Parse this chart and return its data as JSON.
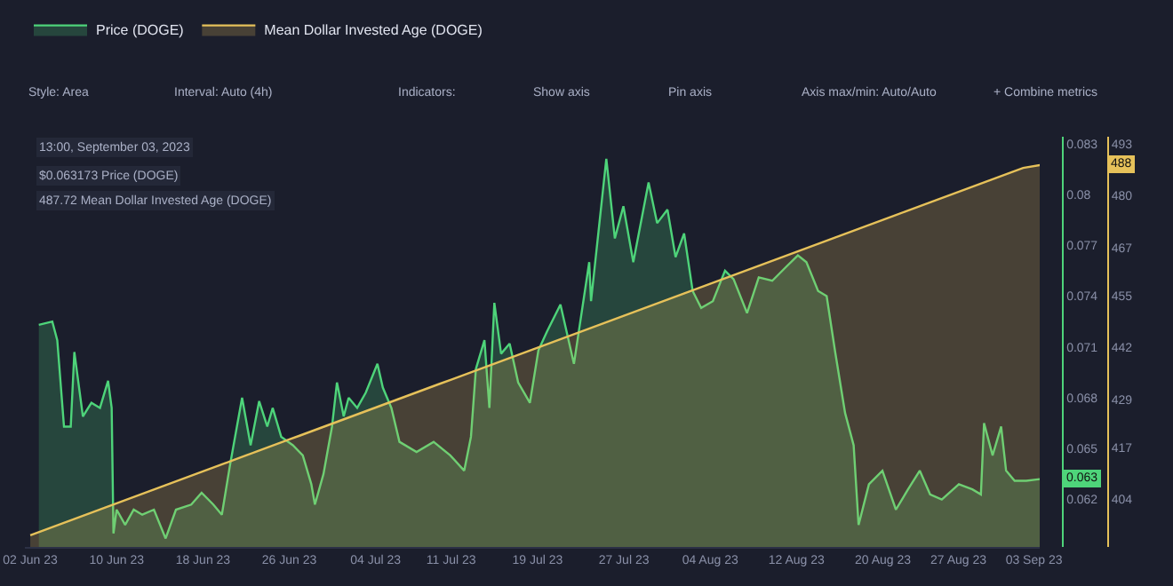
{
  "chart_data": {
    "type": "area",
    "xlim": [
      "2023-06-01T12:00",
      "2023-09-03T13:00"
    ],
    "xticks": [
      {
        "value": "2023-06-02",
        "label": "02 Jun 23"
      },
      {
        "value": "2023-06-10",
        "label": "10 Jun 23"
      },
      {
        "value": "2023-06-18",
        "label": "18 Jun 23"
      },
      {
        "value": "2023-06-26",
        "label": "26 Jun 23"
      },
      {
        "value": "2023-07-04",
        "label": "04 Jul 23"
      },
      {
        "value": "2023-07-11",
        "label": "11 Jul 23"
      },
      {
        "value": "2023-07-19",
        "label": "19 Jul 23"
      },
      {
        "value": "2023-07-27",
        "label": "27 Jul 23"
      },
      {
        "value": "2023-08-04",
        "label": "04 Aug 23"
      },
      {
        "value": "2023-08-12",
        "label": "12 Aug 23"
      },
      {
        "value": "2023-08-20",
        "label": "20 Aug 23"
      },
      {
        "value": "2023-08-27",
        "label": "27 Aug 23"
      },
      {
        "value": "2023-09-03",
        "label": "03 Sep 23"
      }
    ],
    "ylim": [
      0.0592,
      0.0834
    ],
    "yticks": [
      0.062,
      0.065,
      0.068,
      0.071,
      0.074,
      0.077,
      0.08,
      0.083
    ],
    "y2lim": [
      392.1,
      494.8
    ],
    "y2ticks": [
      404,
      417,
      429,
      442,
      455,
      467,
      480,
      493
    ],
    "legend": "top",
    "annotations": [
      "Style: Area",
      "Interval: Auto (4h)",
      "Indicators:",
      "Show axis",
      "Pin axis",
      "Axis max/min: Auto/Auto",
      "+ Combine metrics",
      "13:00, September 03, 2023",
      "$0.063173 Price (DOGE)",
      "487.72 Mean Dollar Invested Age (DOGE)",
      "0.063",
      "488"
    ],
    "series": [
      {
        "name": "Price (DOGE)",
        "color": "#4ed47a",
        "x": [
          "2023-06-02T19:00",
          "2023-06-04T01:00",
          "2023-06-04T12:00",
          "2023-06-05T03:00",
          "2023-06-05T18:00",
          "2023-06-06T02:00",
          "2023-06-06T21:00",
          "2023-06-07T16:00",
          "2023-06-08T11:00",
          "2023-06-09T05:00",
          "2023-06-09T13:00",
          "2023-06-09T17:00",
          "2023-06-10T00:00",
          "2023-06-10T19:00",
          "2023-06-11T14:00",
          "2023-06-12T09:00",
          "2023-06-13T11:00",
          "2023-06-14T13:00",
          "2023-06-15T12:00",
          "2023-06-16T22:00",
          "2023-06-17T21:00",
          "2023-06-18T23:00",
          "2023-06-19T18:00",
          "2023-06-20T12:00",
          "2023-06-21T15:00",
          "2023-06-22T10:00",
          "2023-06-23T05:00",
          "2023-06-23T23:00",
          "2023-06-24T11:00",
          "2023-06-25T06:00",
          "2023-06-26T08:00",
          "2023-06-27T06:00",
          "2023-06-28T01:00",
          "2023-06-28T09:00",
          "2023-06-29T04:00",
          "2023-06-29T23:00",
          "2023-06-30T10:00",
          "2023-07-01T01:00",
          "2023-07-01T12:00",
          "2023-07-02T07:00",
          "2023-07-03T02:00",
          "2023-07-04T04:00",
          "2023-07-04T16:00",
          "2023-07-05T11:00",
          "2023-07-06T05:00",
          "2023-07-07T19:00",
          "2023-07-09T09:00",
          "2023-07-10T22:00",
          "2023-07-12T05:00",
          "2023-07-12T20:00",
          "2023-07-13T07:00",
          "2023-07-14T02:00",
          "2023-07-14T13:00",
          "2023-07-15T00:00",
          "2023-07-15T15:00",
          "2023-07-16T10:00",
          "2023-07-17T05:00",
          "2023-07-18T07:00",
          "2023-07-19T02:00",
          "2023-07-19T21:00",
          "2023-07-21T03:00",
          "2023-07-22T09:00",
          "2023-07-23T19:00",
          "2023-07-23T23:00",
          "2023-07-25T09:00",
          "2023-07-26T04:00",
          "2023-07-26T23:00",
          "2023-07-27T21:00",
          "2023-07-29T07:00",
          "2023-07-30T02:00",
          "2023-07-31T01:00",
          "2023-07-31T19:00",
          "2023-08-01T14:00",
          "2023-08-02T09:00",
          "2023-08-03T04:00",
          "2023-08-04T06:00",
          "2023-08-05T09:00",
          "2023-08-06T04:00",
          "2023-08-07T10:00",
          "2023-08-08T12:00",
          "2023-08-09T18:00",
          "2023-08-11T00:00",
          "2023-08-12T03:00",
          "2023-08-12T22:00",
          "2023-08-14T00:00",
          "2023-08-14T19:00",
          "2023-08-15T14:00",
          "2023-08-16T12:00",
          "2023-08-17T07:00",
          "2023-08-17T18:00",
          "2023-08-18T17:00",
          "2023-08-19T23:00",
          "2023-08-21T05:00",
          "2023-08-22T08:00",
          "2023-08-23T10:00",
          "2023-08-24T09:00",
          "2023-08-25T11:00",
          "2023-08-27T01:00",
          "2023-08-28T07:00",
          "2023-08-29T02:00",
          "2023-08-29T09:00",
          "2023-08-30T04:00",
          "2023-08-30T23:00",
          "2023-08-31T10:00",
          "2023-09-01T05:00",
          "2023-09-02T07:00",
          "2023-09-03T13:00"
        ],
        "values": [
          0.0723,
          0.0725,
          0.0714,
          0.0663,
          0.0663,
          0.0707,
          0.0669,
          0.0677,
          0.0674,
          0.069,
          0.0674,
          0.06,
          0.0614,
          0.0605,
          0.0614,
          0.0611,
          0.0614,
          0.0597,
          0.0614,
          0.0617,
          0.0624,
          0.0617,
          0.0611,
          0.064,
          0.068,
          0.0652,
          0.0678,
          0.0663,
          0.0674,
          0.0657,
          0.0652,
          0.0646,
          0.0629,
          0.0617,
          0.0635,
          0.0663,
          0.0689,
          0.0669,
          0.068,
          0.0674,
          0.0683,
          0.07,
          0.0686,
          0.0674,
          0.0654,
          0.0648,
          0.0654,
          0.0646,
          0.0637,
          0.0657,
          0.0697,
          0.0714,
          0.0674,
          0.0736,
          0.0706,
          0.0712,
          0.0689,
          0.0677,
          0.0708,
          0.0719,
          0.0735,
          0.07,
          0.076,
          0.0737,
          0.0821,
          0.0774,
          0.0793,
          0.076,
          0.0807,
          0.0783,
          0.0791,
          0.0763,
          0.0777,
          0.0743,
          0.0733,
          0.0737,
          0.0755,
          0.075,
          0.073,
          0.0751,
          0.0749,
          0.0757,
          0.0764,
          0.076,
          0.0743,
          0.074,
          0.0707,
          0.0671,
          0.0652,
          0.0605,
          0.0629,
          0.0637,
          0.0614,
          0.0626,
          0.0637,
          0.0623,
          0.062,
          0.0629,
          0.0626,
          0.0623,
          0.0665,
          0.0646,
          0.0663,
          0.0637,
          0.0631,
          0.0631,
          0.0632
        ]
      },
      {
        "name": "Mean Dollar Invested Age (DOGE)",
        "type": "area",
        "axis": "y2",
        "color": "#e6c15a",
        "x": [
          "2023-06-02",
          "2023-06-03",
          "2023-06-04",
          "2023-06-05",
          "2023-06-06",
          "2023-06-07",
          "2023-06-08",
          "2023-06-09",
          "2023-06-10",
          "2023-06-11",
          "2023-06-12",
          "2023-06-13",
          "2023-06-14",
          "2023-06-15",
          "2023-06-16",
          "2023-06-17",
          "2023-06-18",
          "2023-06-19",
          "2023-06-20",
          "2023-06-21",
          "2023-06-22",
          "2023-06-23",
          "2023-06-24",
          "2023-06-25",
          "2023-06-26",
          "2023-06-27",
          "2023-06-28",
          "2023-06-29",
          "2023-06-30",
          "2023-07-01",
          "2023-07-02",
          "2023-07-03",
          "2023-07-04",
          "2023-07-05",
          "2023-07-06",
          "2023-07-07",
          "2023-07-08",
          "2023-07-09",
          "2023-07-10",
          "2023-07-11",
          "2023-07-12",
          "2023-07-13",
          "2023-07-14",
          "2023-07-15",
          "2023-07-16",
          "2023-07-17",
          "2023-07-18",
          "2023-07-19",
          "2023-07-20",
          "2023-07-21",
          "2023-07-22",
          "2023-07-23",
          "2023-07-24",
          "2023-07-25",
          "2023-07-26",
          "2023-07-27",
          "2023-07-28",
          "2023-07-29",
          "2023-07-30",
          "2023-07-31",
          "2023-08-01",
          "2023-08-02",
          "2023-08-03",
          "2023-08-04",
          "2023-08-05",
          "2023-08-06",
          "2023-08-07",
          "2023-08-08",
          "2023-08-09",
          "2023-08-10",
          "2023-08-11",
          "2023-08-12",
          "2023-08-13",
          "2023-08-14",
          "2023-08-15",
          "2023-08-16",
          "2023-08-17",
          "2023-08-18",
          "2023-08-19",
          "2023-08-20",
          "2023-08-21",
          "2023-08-22",
          "2023-08-23",
          "2023-08-24",
          "2023-08-25",
          "2023-08-26",
          "2023-08-27",
          "2023-08-28",
          "2023-08-29",
          "2023-08-30",
          "2023-08-31",
          "2023-09-01",
          "2023-09-02",
          "2023-09-03T13:00"
        ],
        "values": [
          395,
          396,
          397,
          398,
          399,
          400,
          401,
          402,
          403,
          404,
          405,
          406,
          407,
          408,
          409,
          410,
          411,
          412,
          413,
          414,
          415,
          416,
          417,
          418,
          419,
          420,
          421,
          422,
          423,
          424,
          425,
          426,
          427,
          428,
          429,
          430,
          431,
          432,
          433,
          434,
          435,
          436,
          437,
          438,
          439,
          440,
          441,
          442,
          443,
          444,
          445,
          446,
          447,
          448,
          449,
          450,
          451,
          452,
          453,
          454,
          455,
          456,
          457,
          458,
          459,
          460,
          461,
          462,
          463,
          464,
          465,
          466,
          467,
          468,
          469,
          470,
          471,
          472,
          473,
          474,
          475,
          476,
          477,
          478,
          479,
          480,
          481,
          482,
          483,
          484,
          485,
          486,
          487,
          487.7
        ]
      }
    ]
  }
}
